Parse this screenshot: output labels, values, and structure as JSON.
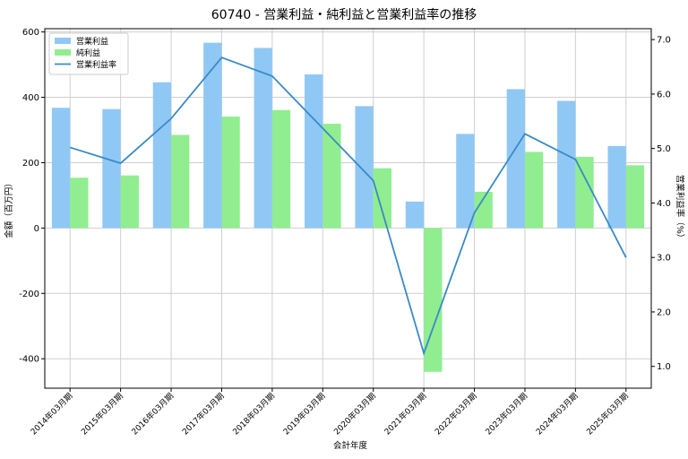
{
  "chart_data": {
    "type": "bar",
    "title": "60740 - 営業利益・純利益と営業利益率の推移",
    "xlabel": "会計年度",
    "ylabel": "金額（百万円）",
    "ylabel_right": "営業利益率（%）",
    "categories": [
      "2014年03月期",
      "2015年03月期",
      "2016年03月期",
      "2017年03月期",
      "2018年03月期",
      "2019年03月期",
      "2020年03月期",
      "2021年03月期",
      "2022年03月期",
      "2023年03月期",
      "2024年03月期",
      "2025年03月期"
    ],
    "series": [
      {
        "name": "営業利益",
        "type": "bar",
        "axis": "left",
        "color": "#90c8f5",
        "values": [
          368,
          364,
          446,
          567,
          551,
          470,
          373,
          81,
          288,
          425,
          389,
          251
        ]
      },
      {
        "name": "純利益",
        "type": "bar",
        "axis": "left",
        "color": "#90ee90",
        "values": [
          154,
          161,
          285,
          341,
          361,
          319,
          183,
          -440,
          111,
          233,
          218,
          192
        ]
      },
      {
        "name": "営業利益率",
        "type": "line",
        "axis": "right",
        "color": "#3a8ac6",
        "values": [
          5.02,
          4.73,
          5.55,
          6.67,
          6.33,
          5.37,
          4.41,
          1.24,
          3.82,
          5.27,
          4.8,
          3.0
        ]
      }
    ],
    "ylim": [
      -490,
      610
    ],
    "yticks": [
      -400,
      -200,
      0,
      200,
      400,
      600
    ],
    "ytick_labels": [
      "-400",
      "-200",
      "0",
      "200",
      "400",
      "600"
    ],
    "ylim_right": [
      0.6,
      7.2
    ],
    "yticks_right": [
      1.0,
      2.0,
      3.0,
      4.0,
      5.0,
      6.0,
      7.0
    ],
    "ytick_labels_right": [
      "1.0",
      "2.0",
      "3.0",
      "4.0",
      "5.0",
      "6.0",
      "7.0"
    ],
    "grid": true,
    "legend_position": "top-left"
  }
}
